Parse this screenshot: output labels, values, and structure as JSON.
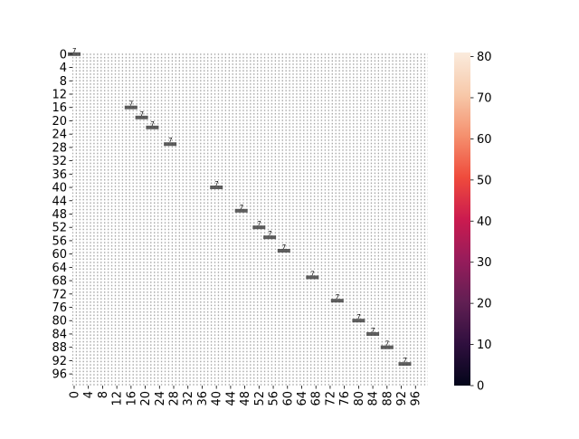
{
  "chart_data": {
    "type": "heatmap",
    "title": "",
    "xlabel": "",
    "ylabel": "",
    "n_rows": 100,
    "n_cols": 100,
    "value_range": [
      0,
      81
    ],
    "colormap": "rocket",
    "annotations": "cell values printed in every cell (too small to read at this resolution)",
    "x_tick_labels": [
      "0",
      "4",
      "8",
      "12",
      "16",
      "20",
      "24",
      "28",
      "32",
      "36",
      "40",
      "44",
      "48",
      "52",
      "56",
      "60",
      "64",
      "68",
      "72",
      "76",
      "80",
      "84",
      "88",
      "92",
      "96"
    ],
    "y_tick_labels": [
      "0",
      "4",
      "8",
      "12",
      "16",
      "20",
      "24",
      "28",
      "32",
      "36",
      "40",
      "44",
      "48",
      "52",
      "56",
      "60",
      "64",
      "68",
      "72",
      "76",
      "80",
      "84",
      "88",
      "92",
      "96"
    ],
    "diagonal_highlights": [
      {
        "row": 0,
        "col": 0,
        "value": 7
      },
      {
        "row": 16,
        "col": 16,
        "value": 7
      },
      {
        "row": 19,
        "col": 19,
        "value": 7
      },
      {
        "row": 22,
        "col": 22,
        "value": 7
      },
      {
        "row": 27,
        "col": 27,
        "value": 7
      },
      {
        "row": 40,
        "col": 40,
        "value": 7
      },
      {
        "row": 47,
        "col": 47,
        "value": 7
      },
      {
        "row": 52,
        "col": 52,
        "value": 7
      },
      {
        "row": 55,
        "col": 55,
        "value": 7
      },
      {
        "row": 59,
        "col": 59,
        "value": 7
      },
      {
        "row": 67,
        "col": 67,
        "value": 7
      },
      {
        "row": 74,
        "col": 74,
        "value": 7
      },
      {
        "row": 80,
        "col": 80,
        "value": 7
      },
      {
        "row": 84,
        "col": 84,
        "value": 7
      },
      {
        "row": 88,
        "col": 88,
        "value": 7
      },
      {
        "row": 93,
        "col": 93,
        "value": 7
      }
    ],
    "colorbar": {
      "ticks": [
        "0",
        "10",
        "20",
        "30",
        "40",
        "50",
        "60",
        "70",
        "80"
      ],
      "min": 0,
      "max": 81,
      "colors": [
        "#03051a",
        "#2f0f3e",
        "#611f53",
        "#961c5b",
        "#cb1b4f",
        "#ef4b3c",
        "#f5906e",
        "#f7c9aa",
        "#faebdd"
      ]
    }
  }
}
